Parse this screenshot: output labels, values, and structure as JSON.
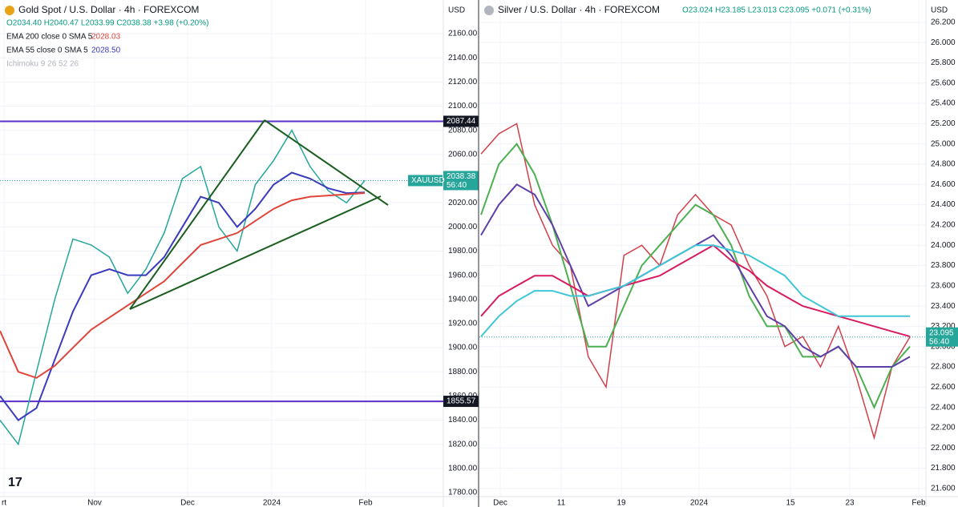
{
  "chart_data": [
    {
      "type": "line",
      "title": "Gold Spot / U.S. Dollar · 4h · FOREXCOM",
      "ohlc": "O2034.40 H2040.47 L2033.99 C2038.38 +3.98 (+0.20%)",
      "indicators": [
        {
          "label": "EMA 200 close 0 SMA 5",
          "value": "2028.03",
          "color": "#e0453a"
        },
        {
          "label": "EMA 55 close 0 SMA 5",
          "value": "2028.50",
          "color": "#3b3bbf"
        },
        {
          "label": "Ichimoku 9 26 52 26",
          "color": "#b2b5be"
        }
      ],
      "currency": "USD",
      "time_labels": [
        "rt",
        "Nov",
        "Dec",
        "2024",
        "Feb"
      ],
      "ylim": [
        1776.7,
        2187.9
      ],
      "yticks": [
        {
          "value": 1780,
          "label": "1780.00"
        },
        {
          "value": 1800,
          "label": "1800.00"
        },
        {
          "value": 1820,
          "label": "1820.00"
        },
        {
          "value": 1840,
          "label": "1840.00"
        },
        {
          "value": 1860,
          "label": "1860.00"
        },
        {
          "value": 1880,
          "label": "1880.00"
        },
        {
          "value": 1900,
          "label": "1900.00"
        },
        {
          "value": 1920,
          "label": "1920.00"
        },
        {
          "value": 1940,
          "label": "1940.00"
        },
        {
          "value": 1960,
          "label": "1960.00"
        },
        {
          "value": 1980,
          "label": "1980.00"
        },
        {
          "value": 2000,
          "label": "2000.00"
        },
        {
          "value": 2020,
          "label": "2020.00"
        },
        {
          "value": 2040,
          "label": "2040.00"
        },
        {
          "value": 2060,
          "label": "2060.00"
        },
        {
          "value": 2080,
          "label": "2080.00"
        },
        {
          "value": 2100,
          "label": "2100.00"
        },
        {
          "value": 2120,
          "label": "2120.00"
        },
        {
          "value": 2140,
          "label": "2140.00"
        },
        {
          "value": 2160,
          "label": "2160.00"
        }
      ],
      "series": [
        {
          "color": "#26a69a",
          "values": [
            1840,
            1820,
            1880,
            1940,
            1990,
            1985,
            1975,
            1945,
            1965,
            1995,
            2040,
            2050,
            2000,
            1980,
            2035,
            2055,
            2080,
            2050,
            2030,
            2020,
            2038.38
          ]
        },
        {
          "color": "#3b3bbf",
          "values": [
            1860,
            1840,
            1850,
            1890,
            1930,
            1960,
            1965,
            1960,
            1960,
            1975,
            2000,
            2025,
            2020,
            2000,
            2015,
            2035,
            2045,
            2040,
            2032,
            2028,
            2028.5
          ]
        },
        {
          "color": "#e0453a",
          "values": [
            1914,
            1880,
            1875,
            1885,
            1900,
            1915,
            1925,
            1935,
            1945,
            1955,
            1970,
            1985,
            1990,
            1995,
            2005,
            2015,
            2022,
            2025,
            2026,
            2027,
            2028.03
          ]
        }
      ],
      "levels": [
        {
          "value": 2087.44,
          "color": "#5b2fc9"
        },
        {
          "value": 1855.57,
          "color": "#5b2fc9"
        }
      ],
      "price_tag": {
        "symbol": "XAUUSD",
        "price": 2038.38,
        "countdown": "56:40",
        "color": "#26a69a"
      }
    },
    {
      "type": "line",
      "title": "Silver / U.S. Dollar · 4h · FOREXCOM",
      "ohlc": "O23.024 H23.185 L23.013 C23.095 +0.071 (+0.31%)",
      "currency": "USD",
      "time_labels": [
        "Dec",
        "11",
        "19",
        "2024",
        "15",
        "23",
        "Feb"
      ],
      "ylim": [
        21.52,
        26.42
      ],
      "yticks": [
        {
          "value": 21.6,
          "label": "21.600"
        },
        {
          "value": 21.8,
          "label": "21.800"
        },
        {
          "value": 22,
          "label": "22.000"
        },
        {
          "value": 22.2,
          "label": "22.200"
        },
        {
          "value": 22.4,
          "label": "22.400"
        },
        {
          "value": 22.6,
          "label": "22.600"
        },
        {
          "value": 22.8,
          "label": "22.800"
        },
        {
          "value": 23,
          "label": "23.000"
        },
        {
          "value": 23.2,
          "label": "23.200"
        },
        {
          "value": 23.4,
          "label": "23.400"
        },
        {
          "value": 23.6,
          "label": "23.600"
        },
        {
          "value": 23.8,
          "label": "23.800"
        },
        {
          "value": 24,
          "label": "24.000"
        },
        {
          "value": 24.2,
          "label": "24.200"
        },
        {
          "value": 24.4,
          "label": "24.400"
        },
        {
          "value": 24.6,
          "label": "24.600"
        },
        {
          "value": 24.8,
          "label": "24.800"
        },
        {
          "value": 25,
          "label": "25.000"
        },
        {
          "value": 25.2,
          "label": "25.200"
        },
        {
          "value": 25.4,
          "label": "25.400"
        },
        {
          "value": 25.6,
          "label": "25.600"
        },
        {
          "value": 25.8,
          "label": "25.800"
        },
        {
          "value": 26,
          "label": "26.000"
        },
        {
          "value": 26.2,
          "label": "26.200"
        }
      ],
      "series": [
        {
          "color": "#d1404a",
          "values": [
            24.9,
            25.1,
            25.2,
            24.4,
            24.0,
            23.8,
            22.9,
            22.6,
            23.9,
            24.0,
            23.8,
            24.3,
            24.5,
            24.3,
            24.2,
            23.8,
            23.5,
            23.0,
            23.1,
            22.8,
            23.2,
            22.7,
            22.1,
            22.8,
            23.095
          ]
        },
        {
          "color": "#4caf50",
          "values": [
            24.3,
            24.8,
            25.0,
            24.7,
            24.2,
            23.6,
            23.0,
            23.0,
            23.4,
            23.8,
            24.0,
            24.2,
            24.4,
            24.3,
            24.0,
            23.5,
            23.2,
            23.2,
            22.9,
            22.9,
            23.0,
            22.8,
            22.4,
            22.8,
            23.0
          ]
        },
        {
          "color": "#5e3fa8",
          "values": [
            24.1,
            24.4,
            24.6,
            24.5,
            24.2,
            23.8,
            23.4,
            23.5,
            23.6,
            23.7,
            23.8,
            23.9,
            24.0,
            24.1,
            23.9,
            23.6,
            23.3,
            23.2,
            23.0,
            22.9,
            23.0,
            22.8,
            22.8,
            22.8,
            22.9
          ]
        },
        {
          "color": "#d81b60",
          "values": [
            23.3,
            23.5,
            23.6,
            23.7,
            23.7,
            23.6,
            23.5,
            23.55,
            23.6,
            23.65,
            23.7,
            23.8,
            23.9,
            24.0,
            23.85,
            23.75,
            23.6,
            23.5,
            23.4,
            23.35,
            23.3,
            23.25,
            23.2,
            23.15,
            23.1
          ]
        },
        {
          "color": "#3ec6d6",
          "values": [
            23.1,
            23.3,
            23.45,
            23.55,
            23.55,
            23.5,
            23.5,
            23.55,
            23.6,
            23.7,
            23.8,
            23.9,
            24.0,
            24.0,
            23.95,
            23.9,
            23.8,
            23.7,
            23.5,
            23.4,
            23.3,
            23.3,
            23.3,
            23.3,
            23.3
          ]
        }
      ],
      "price_tag": {
        "price": 23.095,
        "countdown": "56:40",
        "color": "#26a69a"
      }
    }
  ]
}
